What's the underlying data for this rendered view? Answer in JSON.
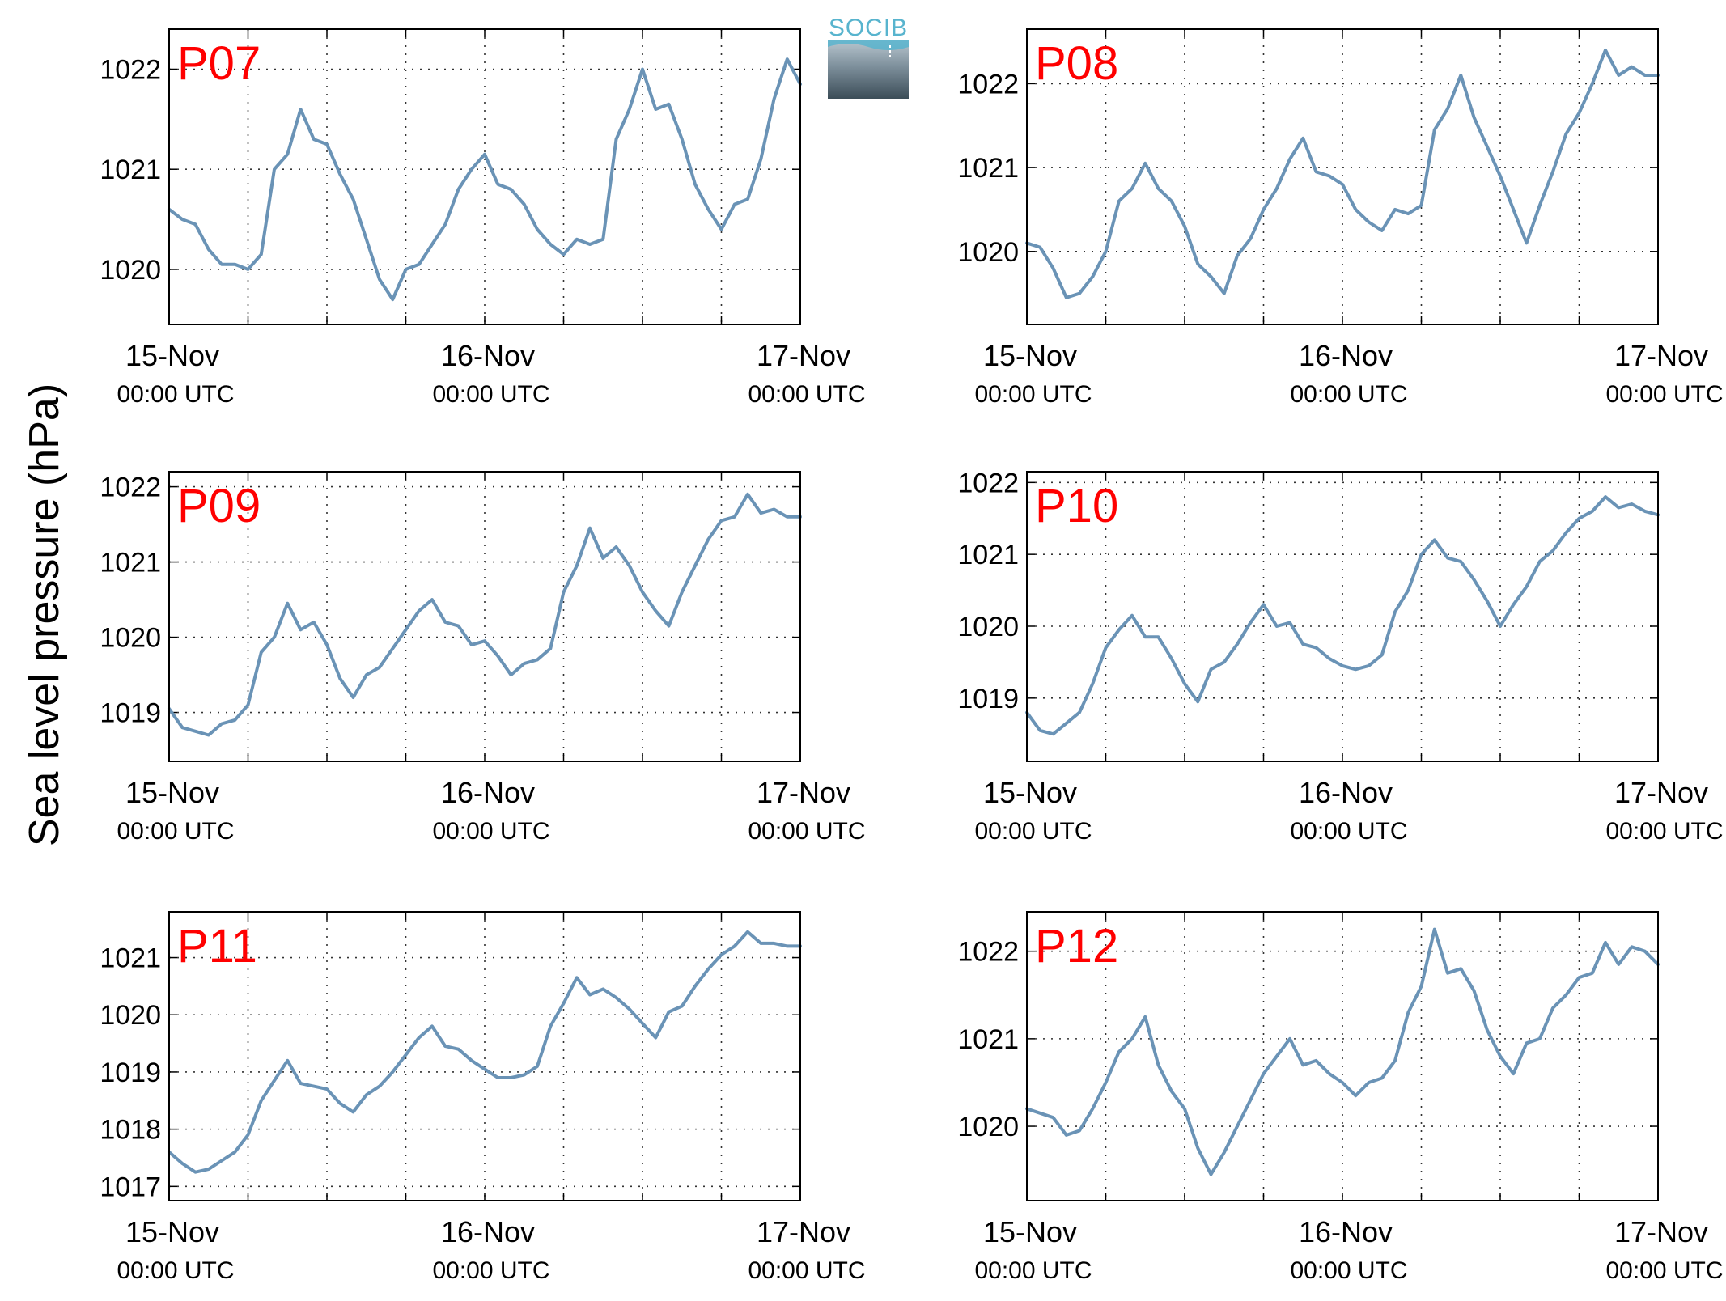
{
  "logo": {
    "text": "SOCIB",
    "text_color": "#58b4ce"
  },
  "ylabel": "Sea level pressure (hPa)",
  "line_color": "#6a93b6",
  "station_label_color": "#ff0000",
  "chart_data": [
    {
      "type": "line",
      "station": "P07",
      "x_ticks": [
        {
          "date": "15-Nov",
          "time": "00:00 UTC"
        },
        {
          "date": "16-Nov",
          "time": "00:00 UTC"
        },
        {
          "date": "17-Nov",
          "time": "00:00 UTC"
        }
      ],
      "y_ticks": [
        1020,
        1021,
        1022
      ],
      "ylim": [
        1019.45,
        1022.4
      ],
      "series": [
        {
          "x_hours": [
            0,
            1,
            2,
            3,
            4,
            5,
            6,
            7,
            8,
            9,
            10,
            11,
            12,
            13,
            14,
            15,
            16,
            17,
            18,
            19,
            20,
            21,
            22,
            23,
            24,
            25,
            26,
            27,
            28,
            29,
            30,
            31,
            32,
            33,
            34,
            35,
            36,
            37,
            38,
            39,
            40,
            41,
            42,
            43,
            44,
            45,
            46,
            47,
            48
          ],
          "values": [
            1020.6,
            1020.5,
            1020.45,
            1020.2,
            1020.05,
            1020.05,
            1020.0,
            1020.15,
            1021.0,
            1021.15,
            1021.6,
            1021.3,
            1021.25,
            1020.95,
            1020.7,
            1020.3,
            1019.9,
            1019.7,
            1020.0,
            1020.05,
            1020.25,
            1020.45,
            1020.8,
            1021.0,
            1021.15,
            1020.85,
            1020.8,
            1020.65,
            1020.4,
            1020.25,
            1020.15,
            1020.3,
            1020.25,
            1020.3,
            1021.3,
            1021.6,
            1022.0,
            1021.6,
            1021.65,
            1021.3,
            1020.85,
            1020.6,
            1020.4,
            1020.65,
            1020.7,
            1021.1,
            1021.7,
            1022.1,
            1021.85
          ]
        }
      ]
    },
    {
      "type": "line",
      "station": "P08",
      "x_ticks": [
        {
          "date": "15-Nov",
          "time": "00:00 UTC"
        },
        {
          "date": "16-Nov",
          "time": "00:00 UTC"
        },
        {
          "date": "17-Nov",
          "time": "00:00 UTC"
        }
      ],
      "y_ticks": [
        1020,
        1021,
        1022
      ],
      "ylim": [
        1019.13,
        1022.65
      ],
      "series": [
        {
          "x_hours": [
            0,
            1,
            2,
            3,
            4,
            5,
            6,
            7,
            8,
            9,
            10,
            11,
            12,
            13,
            14,
            15,
            16,
            17,
            18,
            19,
            20,
            21,
            22,
            23,
            24,
            25,
            26,
            27,
            28,
            29,
            30,
            31,
            32,
            33,
            34,
            35,
            36,
            37,
            38,
            39,
            40,
            41,
            42,
            43,
            44,
            45,
            46,
            47,
            48
          ],
          "values": [
            1020.1,
            1020.05,
            1019.8,
            1019.45,
            1019.5,
            1019.7,
            1020.0,
            1020.6,
            1020.75,
            1021.05,
            1020.75,
            1020.6,
            1020.3,
            1019.85,
            1019.7,
            1019.5,
            1019.95,
            1020.15,
            1020.5,
            1020.75,
            1021.1,
            1021.35,
            1020.95,
            1020.9,
            1020.8,
            1020.5,
            1020.35,
            1020.25,
            1020.5,
            1020.45,
            1020.55,
            1021.45,
            1021.7,
            1022.1,
            1021.6,
            1021.25,
            1020.9,
            1020.5,
            1020.1,
            1020.55,
            1020.95,
            1021.4,
            1021.65,
            1022.0,
            1022.4,
            1022.1,
            1022.2,
            1022.1,
            1022.1
          ]
        }
      ]
    },
    {
      "type": "line",
      "station": "P09",
      "x_ticks": [
        {
          "date": "15-Nov",
          "time": "00:00 UTC"
        },
        {
          "date": "16-Nov",
          "time": "00:00 UTC"
        },
        {
          "date": "17-Nov",
          "time": "00:00 UTC"
        }
      ],
      "y_ticks": [
        1019,
        1020,
        1021,
        1022
      ],
      "ylim": [
        1018.35,
        1022.2
      ],
      "series": [
        {
          "x_hours": [
            0,
            1,
            2,
            3,
            4,
            5,
            6,
            7,
            8,
            9,
            10,
            11,
            12,
            13,
            14,
            15,
            16,
            17,
            18,
            19,
            20,
            21,
            22,
            23,
            24,
            25,
            26,
            27,
            28,
            29,
            30,
            31,
            32,
            33,
            34,
            35,
            36,
            37,
            38,
            39,
            40,
            41,
            42,
            43,
            44,
            45,
            46,
            47,
            48
          ],
          "values": [
            1019.05,
            1018.8,
            1018.75,
            1018.7,
            1018.85,
            1018.9,
            1019.1,
            1019.8,
            1020.0,
            1020.45,
            1020.1,
            1020.2,
            1019.9,
            1019.45,
            1019.2,
            1019.5,
            1019.6,
            1019.85,
            1020.1,
            1020.35,
            1020.5,
            1020.2,
            1020.15,
            1019.9,
            1019.95,
            1019.75,
            1019.5,
            1019.65,
            1019.7,
            1019.85,
            1020.6,
            1020.95,
            1021.45,
            1021.05,
            1021.2,
            1020.95,
            1020.6,
            1020.35,
            1020.15,
            1020.6,
            1020.95,
            1021.3,
            1021.55,
            1021.6,
            1021.9,
            1021.65,
            1021.7,
            1021.6,
            1021.6
          ]
        }
      ]
    },
    {
      "type": "line",
      "station": "P10",
      "x_ticks": [
        {
          "date": "15-Nov",
          "time": "00:00 UTC"
        },
        {
          "date": "16-Nov",
          "time": "00:00 UTC"
        },
        {
          "date": "17-Nov",
          "time": "00:00 UTC"
        }
      ],
      "y_ticks": [
        1019,
        1020,
        1021,
        1022
      ],
      "ylim": [
        1018.12,
        1022.15
      ],
      "series": [
        {
          "x_hours": [
            0,
            1,
            2,
            3,
            4,
            5,
            6,
            7,
            8,
            9,
            10,
            11,
            12,
            13,
            14,
            15,
            16,
            17,
            18,
            19,
            20,
            21,
            22,
            23,
            24,
            25,
            26,
            27,
            28,
            29,
            30,
            31,
            32,
            33,
            34,
            35,
            36,
            37,
            38,
            39,
            40,
            41,
            42,
            43,
            44,
            45,
            46,
            47,
            48
          ],
          "values": [
            1018.8,
            1018.55,
            1018.5,
            1018.65,
            1018.8,
            1019.2,
            1019.7,
            1019.95,
            1020.15,
            1019.85,
            1019.85,
            1019.55,
            1019.2,
            1018.95,
            1019.4,
            1019.5,
            1019.75,
            1020.05,
            1020.3,
            1020.0,
            1020.05,
            1019.75,
            1019.7,
            1019.55,
            1019.45,
            1019.4,
            1019.45,
            1019.6,
            1020.2,
            1020.5,
            1021.0,
            1021.2,
            1020.95,
            1020.9,
            1020.65,
            1020.35,
            1020.0,
            1020.3,
            1020.55,
            1020.9,
            1021.05,
            1021.3,
            1021.5,
            1021.6,
            1021.8,
            1021.65,
            1021.7,
            1021.6,
            1021.55
          ]
        }
      ]
    },
    {
      "type": "line",
      "station": "P11",
      "x_ticks": [
        {
          "date": "15-Nov",
          "time": "00:00 UTC"
        },
        {
          "date": "16-Nov",
          "time": "00:00 UTC"
        },
        {
          "date": "17-Nov",
          "time": "00:00 UTC"
        }
      ],
      "y_ticks": [
        1017,
        1018,
        1019,
        1020,
        1021
      ],
      "ylim": [
        1016.75,
        1021.8
      ],
      "series": [
        {
          "x_hours": [
            0,
            1,
            2,
            3,
            4,
            5,
            6,
            7,
            8,
            9,
            10,
            11,
            12,
            13,
            14,
            15,
            16,
            17,
            18,
            19,
            20,
            21,
            22,
            23,
            24,
            25,
            26,
            27,
            28,
            29,
            30,
            31,
            32,
            33,
            34,
            35,
            36,
            37,
            38,
            39,
            40,
            41,
            42,
            43,
            44,
            45,
            46,
            47,
            48
          ],
          "values": [
            1017.6,
            1017.4,
            1017.25,
            1017.3,
            1017.45,
            1017.6,
            1017.9,
            1018.5,
            1018.85,
            1019.2,
            1018.8,
            1018.75,
            1018.7,
            1018.45,
            1018.3,
            1018.6,
            1018.75,
            1019.0,
            1019.3,
            1019.6,
            1019.8,
            1019.45,
            1019.4,
            1019.2,
            1019.05,
            1018.9,
            1018.9,
            1018.95,
            1019.1,
            1019.8,
            1020.2,
            1020.65,
            1020.35,
            1020.45,
            1020.3,
            1020.1,
            1019.85,
            1019.6,
            1020.05,
            1020.15,
            1020.5,
            1020.8,
            1021.05,
            1021.2,
            1021.45,
            1021.25,
            1021.25,
            1021.2,
            1021.2
          ]
        }
      ]
    },
    {
      "type": "line",
      "station": "P12",
      "x_ticks": [
        {
          "date": "15-Nov",
          "time": "00:00 UTC"
        },
        {
          "date": "16-Nov",
          "time": "00:00 UTC"
        },
        {
          "date": "17-Nov",
          "time": "00:00 UTC"
        }
      ],
      "y_ticks": [
        1020,
        1021,
        1022
      ],
      "ylim": [
        1019.15,
        1022.45
      ],
      "series": [
        {
          "x_hours": [
            0,
            1,
            2,
            3,
            4,
            5,
            6,
            7,
            8,
            9,
            10,
            11,
            12,
            13,
            14,
            15,
            16,
            17,
            18,
            19,
            20,
            21,
            22,
            23,
            24,
            25,
            26,
            27,
            28,
            29,
            30,
            31,
            32,
            33,
            34,
            35,
            36,
            37,
            38,
            39,
            40,
            41,
            42,
            43,
            44,
            45,
            46,
            47,
            48
          ],
          "values": [
            1020.2,
            1020.15,
            1020.1,
            1019.9,
            1019.95,
            1020.2,
            1020.5,
            1020.85,
            1021.0,
            1021.25,
            1020.7,
            1020.4,
            1020.2,
            1019.75,
            1019.45,
            1019.7,
            1020.0,
            1020.3,
            1020.6,
            1020.8,
            1021.0,
            1020.7,
            1020.75,
            1020.6,
            1020.5,
            1020.35,
            1020.5,
            1020.55,
            1020.75,
            1021.3,
            1021.6,
            1022.25,
            1021.75,
            1021.8,
            1021.55,
            1021.1,
            1020.8,
            1020.6,
            1020.95,
            1021.0,
            1021.35,
            1021.5,
            1021.7,
            1021.75,
            1022.1,
            1021.85,
            1022.05,
            1022.0,
            1021.85
          ]
        }
      ]
    }
  ]
}
